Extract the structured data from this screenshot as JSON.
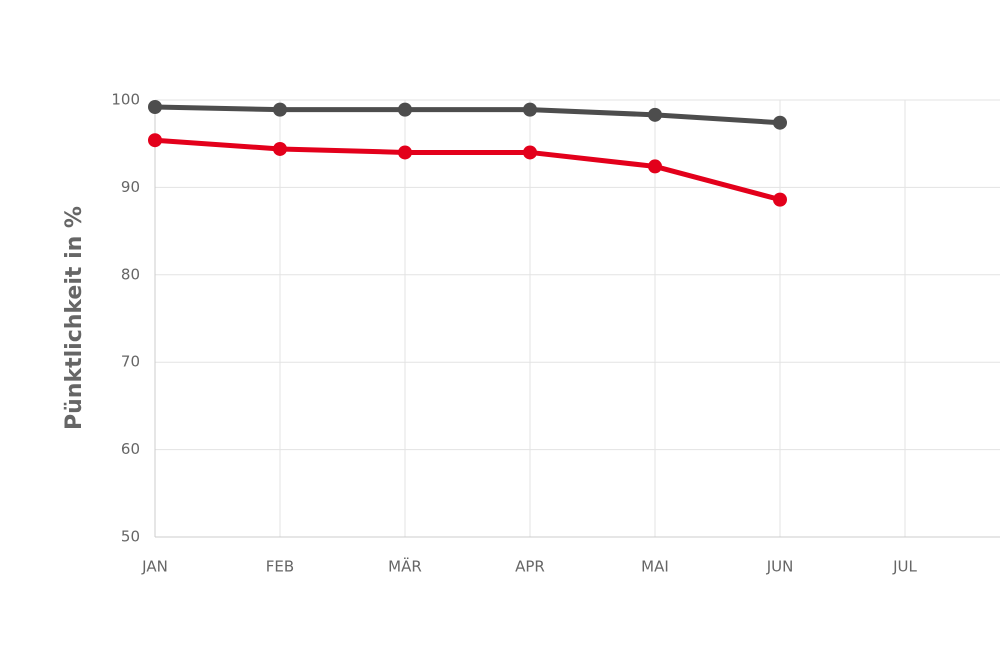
{
  "chart_data": {
    "type": "line",
    "y_label": "Pünktlichkeit in %",
    "categories": [
      "JAN",
      "FEB",
      "MÄR",
      "APR",
      "MAI",
      "JUN",
      "JUL"
    ],
    "series": [
      {
        "color": "#4d4d4d",
        "values": [
          99.2,
          98.9,
          98.9,
          98.9,
          98.3,
          97.4,
          null
        ]
      },
      {
        "color": "#e3001b",
        "values": [
          95.4,
          94.4,
          94.0,
          94.0,
          92.4,
          88.6,
          null
        ]
      }
    ],
    "ylim": [
      50,
      100
    ],
    "yticks": [
      50,
      60,
      70,
      80,
      90,
      100
    ],
    "grid": true
  }
}
